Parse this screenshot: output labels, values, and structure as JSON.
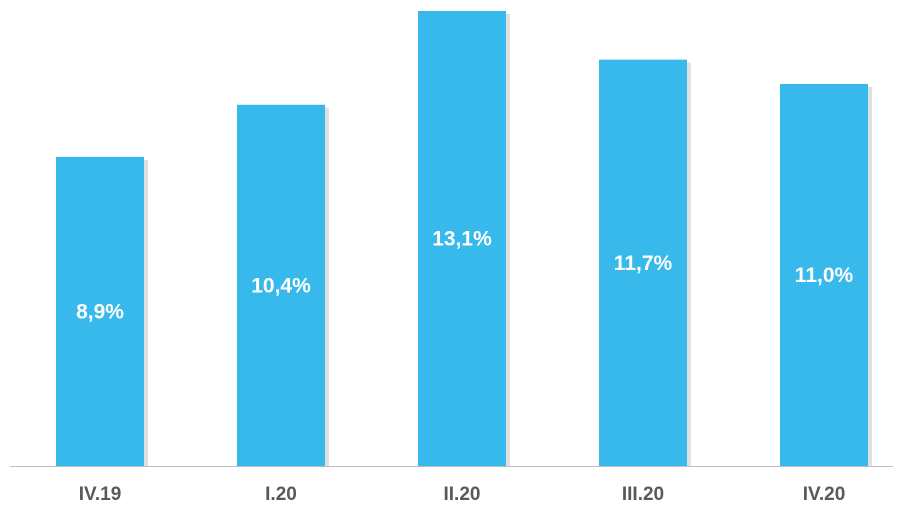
{
  "chart_data": {
    "type": "bar",
    "title": "",
    "xlabel": "",
    "ylabel": "",
    "categories": [
      "IV.19",
      "I.20",
      "II.20",
      "III.20",
      "IV.20"
    ],
    "values": [
      8.9,
      10.4,
      13.1,
      11.7,
      11.0
    ],
    "data_labels": [
      "8,9%",
      "10,4%",
      "13,1%",
      "11,7%",
      "11,0%"
    ],
    "ylim": [
      0,
      13.1
    ],
    "grid": false,
    "legend": "none",
    "colors": {
      "bar": "#37b9eb",
      "data_label": "#ffffff",
      "tick_label": "#595959",
      "axis": "#bfbfbf"
    }
  }
}
